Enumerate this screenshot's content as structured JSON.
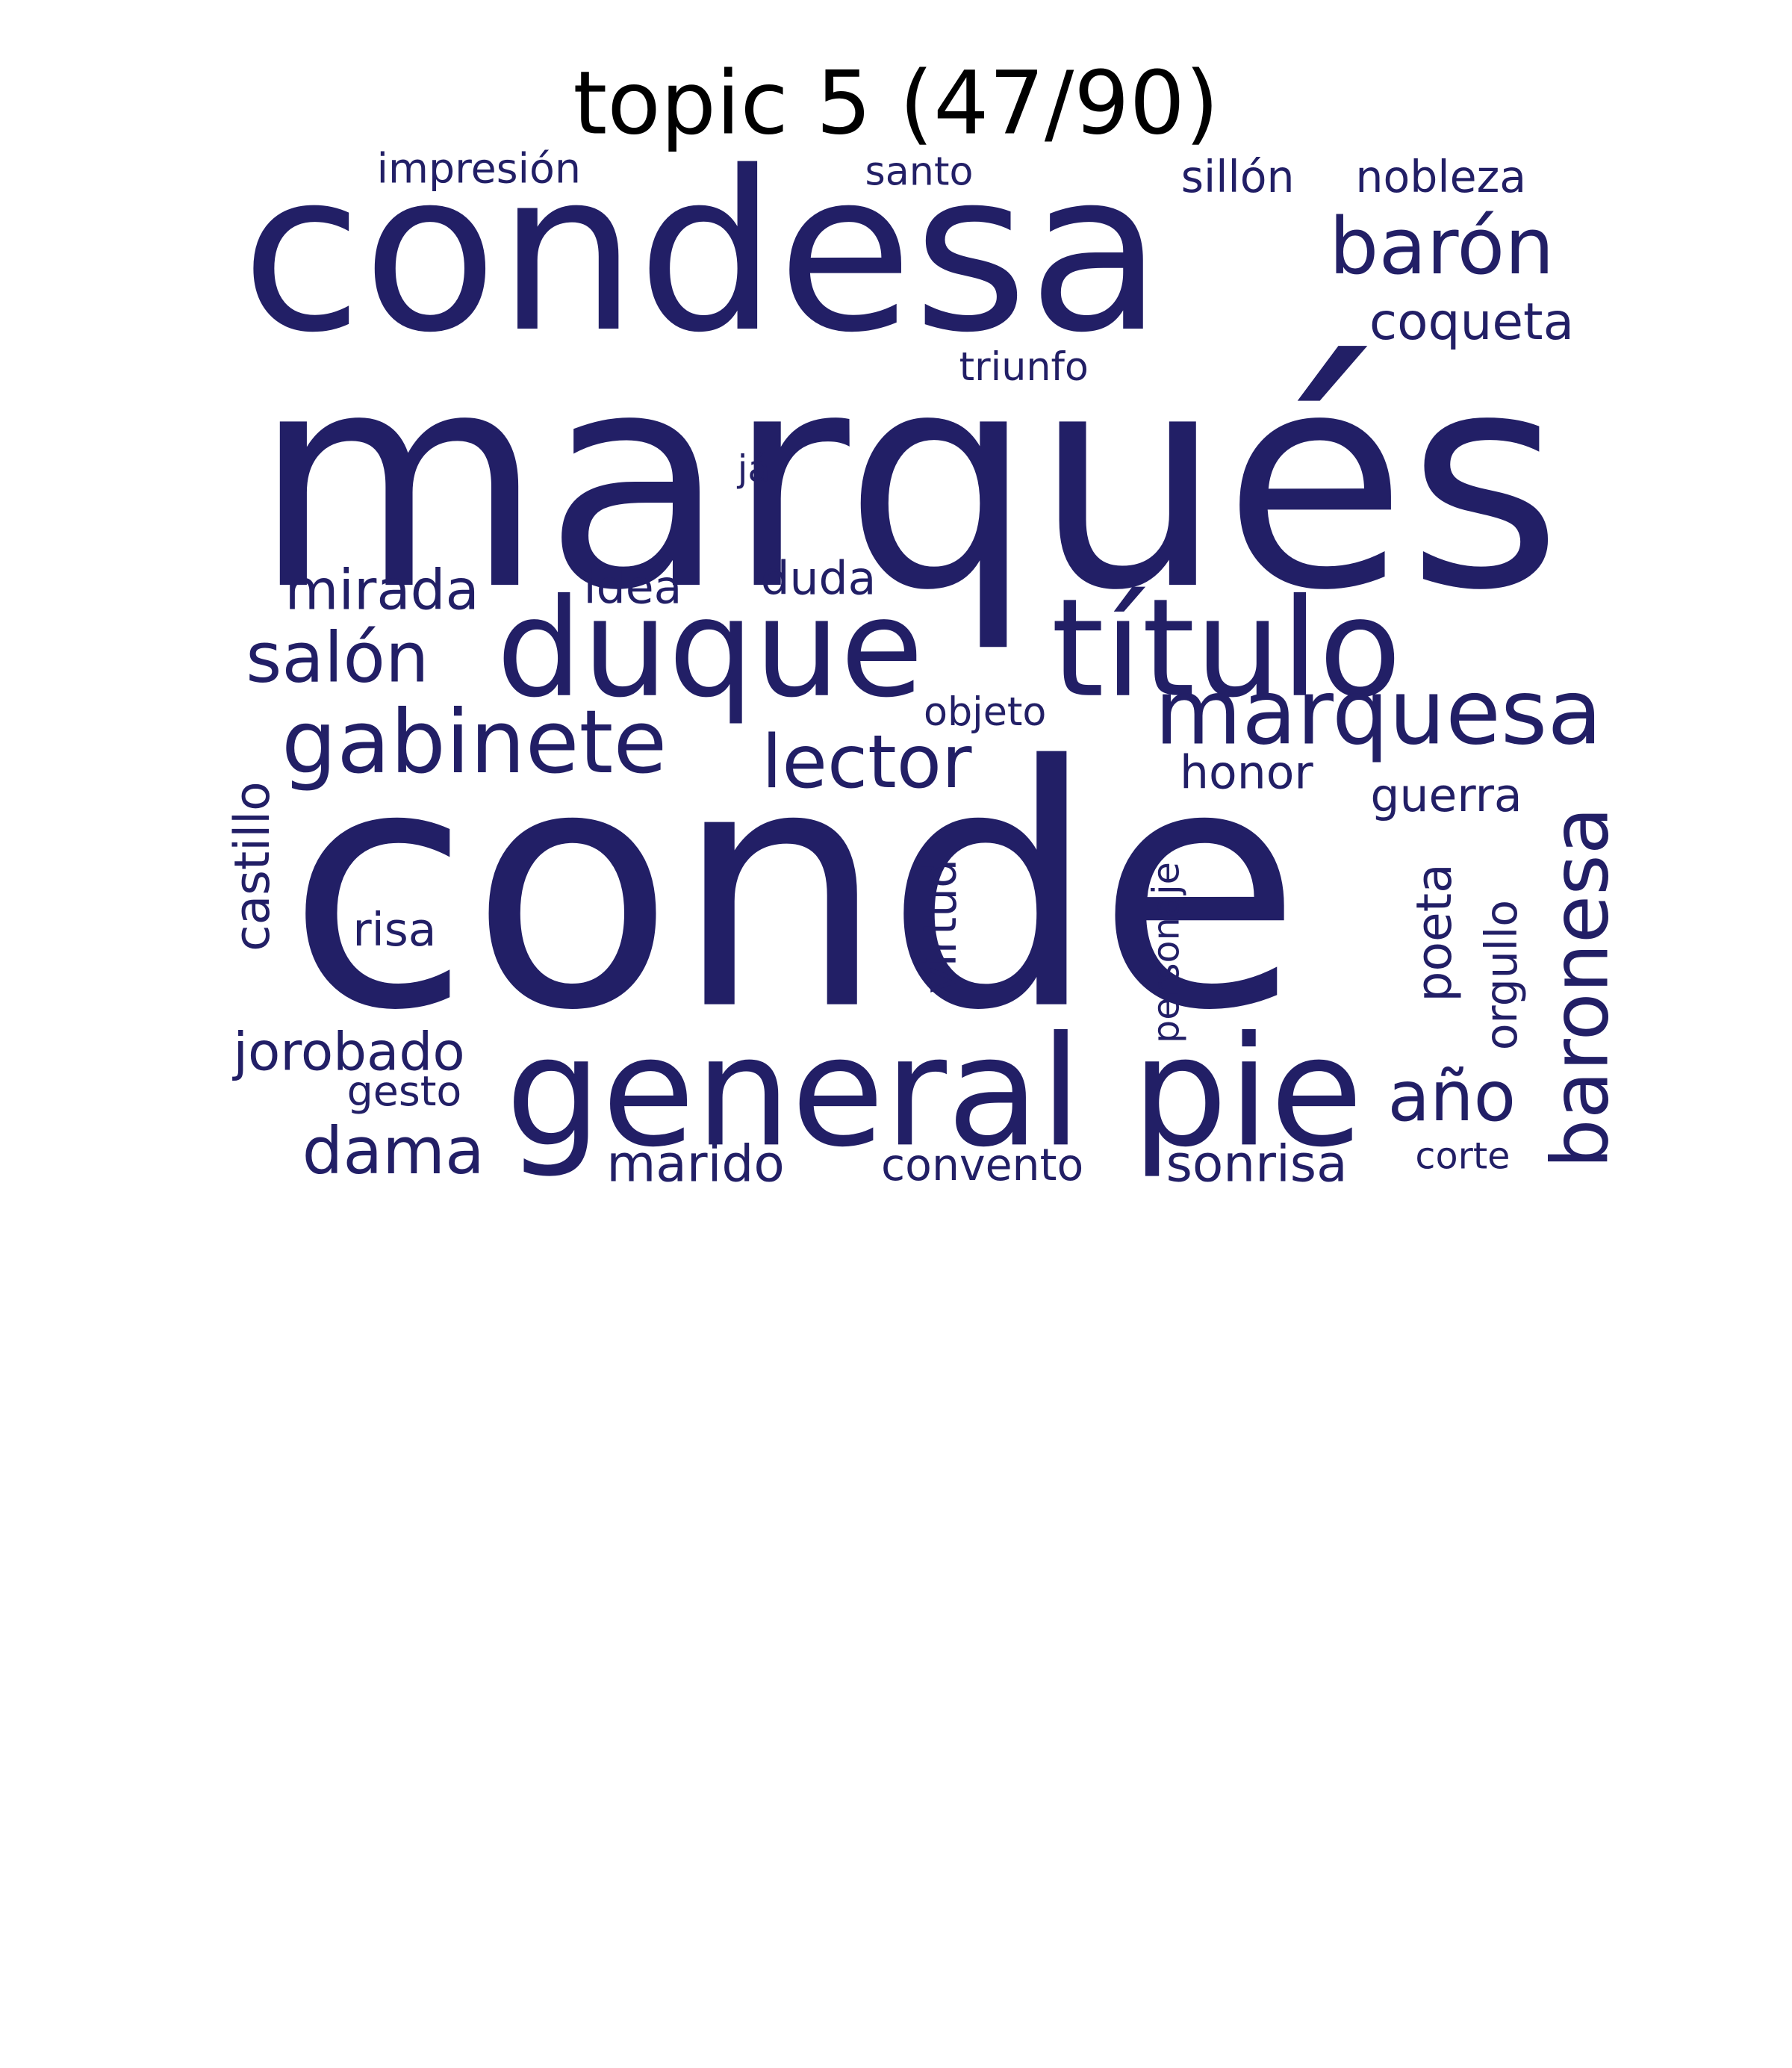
{
  "title": "topic 5 (47/90)",
  "colors": {
    "word": "#221f66",
    "title": "#000000",
    "background": "#ffffff"
  },
  "words": {
    "marques": "marqués",
    "conde": "conde",
    "condesa": "condesa",
    "duque": "duque",
    "titulo": "título",
    "general": "general",
    "pie": "pie",
    "marquesa": "marquesa",
    "gabinete": "gabinete",
    "baron": "barón",
    "baronesa": "baronesa",
    "lector": "lector",
    "salon": "salón",
    "mirada": "mirada",
    "ano": "año",
    "dama": "dama",
    "jorobado": "jorobado",
    "sonrisa": "sonrisa",
    "marido": "marido",
    "coqueta": "coqueta",
    "castillo": "castillo",
    "poeta": "poeta",
    "duda": "duda",
    "idea": "idea",
    "guerra": "guerra",
    "honor": "honor",
    "risa": "risa",
    "virtud": "virtud",
    "orgullo": "orgullo",
    "convento": "convento",
    "sillon": "sillón",
    "nobleza": "nobleza",
    "impresion": "impresión",
    "gesto": "gesto",
    "personaje": "personaje",
    "santo": "santo",
    "triunfo": "triunfo",
    "objeto": "objeto",
    "corte": "corte",
    "ja": "já"
  }
}
